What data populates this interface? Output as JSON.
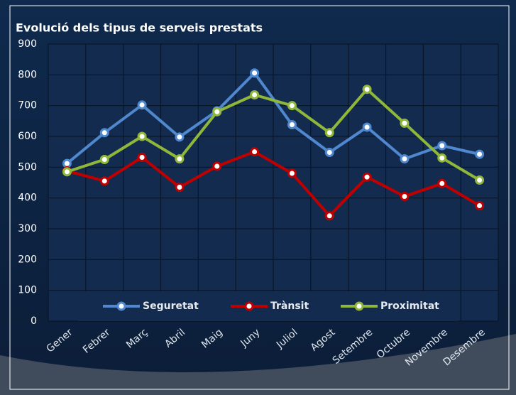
{
  "chart_data": {
    "type": "line",
    "title": "Evolució dels tipus de serveis prestats",
    "categories": [
      "Gener",
      "Febrer",
      "Març",
      "Abril",
      "Maig",
      "Juny",
      "Juliol",
      "Agost",
      "Setembre",
      "Octubre",
      "Novembre",
      "Desembre"
    ],
    "series": [
      {
        "name": "Seguretat",
        "color": "#4f88cf",
        "values": [
          512,
          612,
          702,
          598,
          683,
          806,
          638,
          548,
          630,
          527,
          570,
          542
        ]
      },
      {
        "name": "Trànsit",
        "color": "#c00000",
        "values": [
          488,
          455,
          532,
          435,
          503,
          550,
          480,
          342,
          468,
          405,
          447,
          375
        ]
      },
      {
        "name": "Proximitat",
        "color": "#8fb83a",
        "values": [
          485,
          525,
          600,
          527,
          680,
          735,
          700,
          612,
          753,
          643,
          530,
          458
        ]
      }
    ],
    "ylim": [
      0,
      900
    ],
    "yticks": [
      0,
      100,
      200,
      300,
      400,
      500,
      600,
      700,
      800,
      900
    ],
    "grid": true,
    "legend": "bottom"
  }
}
